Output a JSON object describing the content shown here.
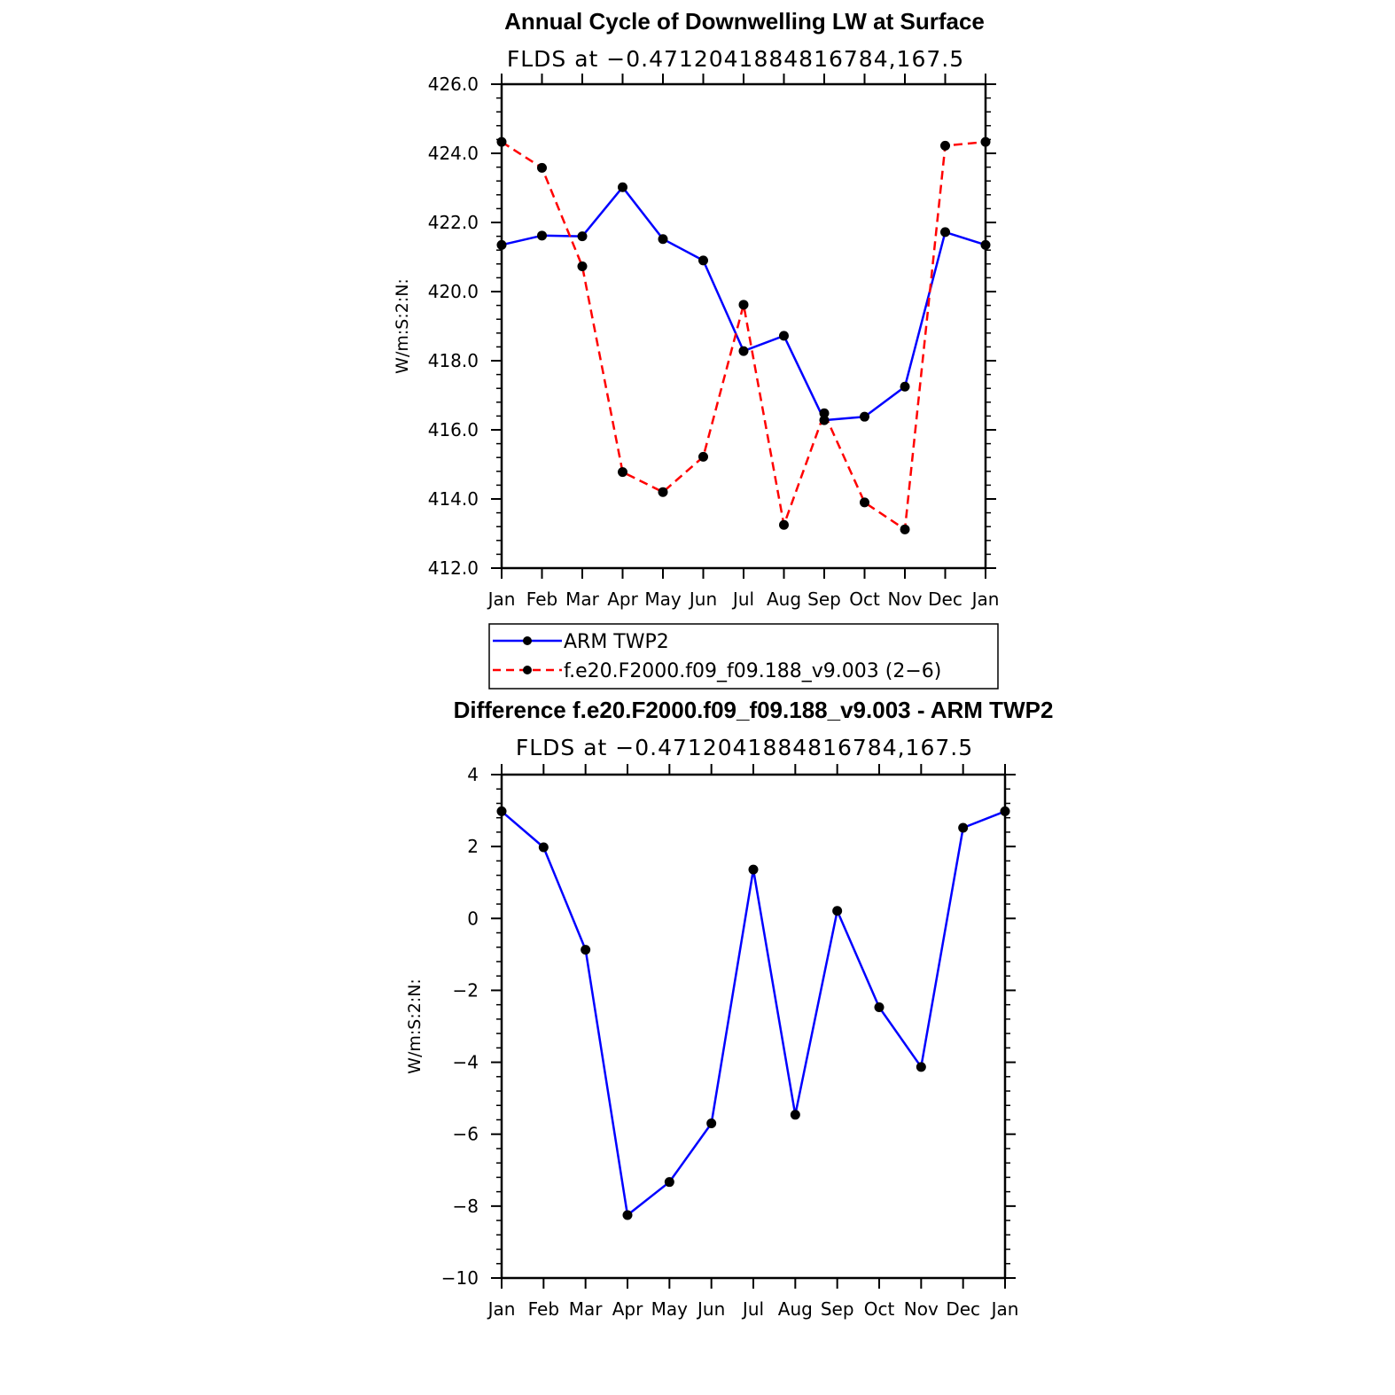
{
  "chart_data": [
    {
      "type": "line",
      "title": "Annual Cycle of Downwelling LW at Surface",
      "subtitle": "FLDS at −0.4712041884816784,167.5",
      "xlabel": "",
      "ylabel": "W/m:S:2:N:",
      "categories": [
        "Jan",
        "Feb",
        "Mar",
        "Apr",
        "May",
        "Jun",
        "Jul",
        "Aug",
        "Sep",
        "Oct",
        "Nov",
        "Dec",
        "Jan"
      ],
      "ylim": [
        412.0,
        426.0
      ],
      "yticks": [
        "412.0",
        "414.0",
        "416.0",
        "418.0",
        "420.0",
        "422.0",
        "424.0",
        "426.0"
      ],
      "grid": false,
      "legend_position": "bottom",
      "series": [
        {
          "name": "ARM TWP2",
          "color": "#0000ff",
          "style": "solid",
          "values": [
            421.35,
            421.62,
            421.6,
            423.02,
            421.52,
            420.9,
            418.28,
            418.72,
            416.28,
            416.38,
            417.25,
            421.72,
            421.35
          ]
        },
        {
          "name": "f.e20.F2000.f09_f09.188_v9.003 (2−6)",
          "color": "#ff0000",
          "style": "dashed",
          "values": [
            424.33,
            423.58,
            420.73,
            414.78,
            414.2,
            415.22,
            419.62,
            413.25,
            416.48,
            413.9,
            413.12,
            424.22,
            424.33
          ]
        }
      ]
    },
    {
      "type": "line",
      "title": "Difference f.e20.F2000.f09_f09.188_v9.003 - ARM TWP2",
      "subtitle": "FLDS at −0.4712041884816784,167.5",
      "xlabel": "",
      "ylabel": "W/m:S:2:N:",
      "categories": [
        "Jan",
        "Feb",
        "Mar",
        "Apr",
        "May",
        "Jun",
        "Jul",
        "Aug",
        "Sep",
        "Oct",
        "Nov",
        "Dec",
        "Jan"
      ],
      "ylim": [
        -10,
        4
      ],
      "yticks": [
        "−10",
        "−8",
        "−6",
        "−4",
        "−2",
        "0",
        "2",
        "4"
      ],
      "grid": false,
      "series": [
        {
          "color": "#0000ff",
          "style": "solid",
          "values": [
            2.98,
            1.98,
            -0.87,
            -8.25,
            -7.33,
            -5.7,
            1.36,
            -5.46,
            0.21,
            -2.47,
            -4.13,
            2.52,
            2.98
          ]
        }
      ]
    }
  ]
}
